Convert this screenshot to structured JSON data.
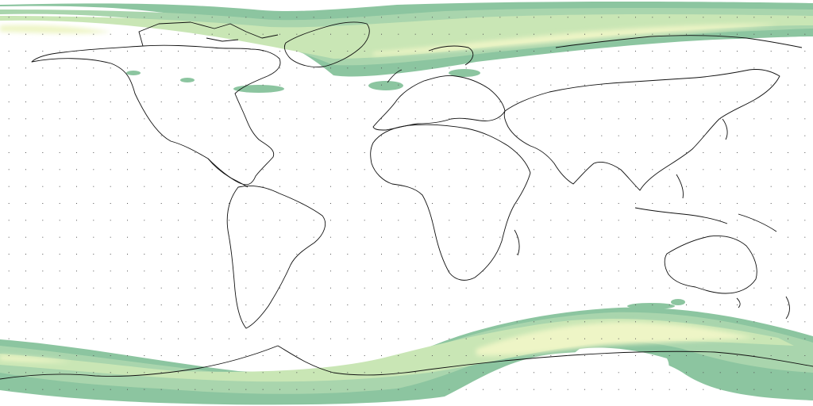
{
  "map": {
    "projection": "equirectangular",
    "extent": {
      "lon": [
        -180,
        180
      ],
      "lat": [
        -90,
        90
      ]
    },
    "colors": {
      "background": "#ffffff",
      "coastline": "#111111",
      "band_outer": "#8cc5a0",
      "band_mid": "#a9d5ad",
      "band_inner": "#c9e6b5",
      "band_core": "#eef5c6",
      "graticule_dot": "#555555"
    },
    "graticule_spacing_deg": 7.5,
    "layers": [
      "auroral-oval-north",
      "auroral-oval-south",
      "coastlines",
      "graticule-dots"
    ]
  }
}
